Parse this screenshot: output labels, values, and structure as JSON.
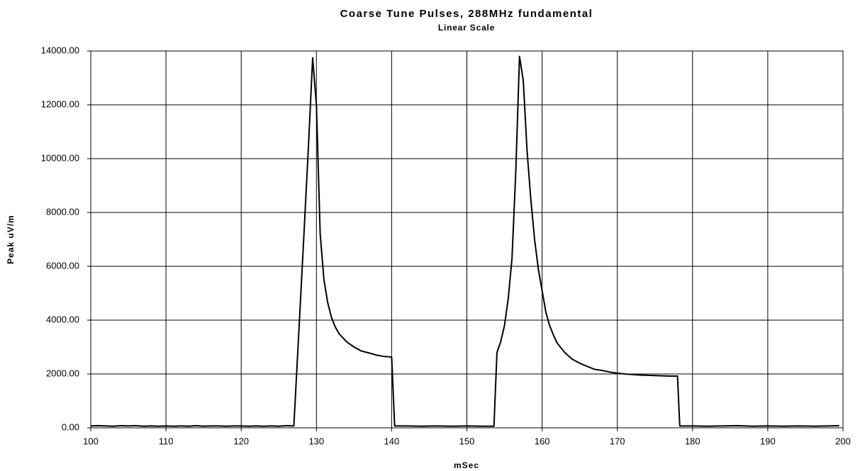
{
  "chart_data": {
    "type": "line",
    "title": "Coarse Tune Pulses,  288MHz fundamental",
    "subtitle": "Linear Scale",
    "x_label": "mSec",
    "y_label": "Peak uV/m",
    "color": "#000000",
    "grid": true,
    "xlim": [
      100,
      200
    ],
    "xticks": [
      100,
      110,
      120,
      130,
      140,
      150,
      160,
      170,
      180,
      190,
      200
    ],
    "ylim": [
      0,
      14000
    ],
    "yticks": [
      {
        "value": 0,
        "label": "0.00"
      },
      {
        "value": 2000,
        "label": "2000.00"
      },
      {
        "value": 4000,
        "label": "4000.00"
      },
      {
        "value": 6000,
        "label": "6000.00"
      },
      {
        "value": 8000,
        "label": "8000.00"
      },
      {
        "value": 10000,
        "label": "10000.00"
      },
      {
        "value": 12000,
        "label": "12000.00"
      },
      {
        "value": 14000,
        "label": "14000.00"
      }
    ],
    "x": [
      100,
      101,
      102,
      103,
      104,
      105,
      106,
      107,
      108,
      109,
      110,
      111,
      112,
      113,
      114,
      115,
      116,
      117,
      118,
      119,
      120,
      121,
      122,
      123,
      124,
      125,
      126,
      127,
      127.8,
      128.4,
      129,
      129.5,
      130,
      130.5,
      131,
      131.5,
      132,
      132.5,
      133,
      134,
      135,
      136,
      137,
      138,
      139,
      140,
      140.4,
      142,
      144,
      146,
      148,
      150,
      152,
      153.6,
      154,
      154.5,
      155,
      155.5,
      156,
      156.5,
      157,
      157.5,
      158,
      158.5,
      159,
      159.5,
      160,
      160.5,
      161,
      161.5,
      162,
      163,
      164,
      165,
      166,
      167,
      168,
      169,
      170,
      171,
      172,
      173,
      174,
      175,
      176,
      177,
      178,
      178.3,
      180,
      182,
      184,
      186,
      188,
      190,
      192,
      194,
      196,
      198,
      199.5
    ],
    "values": [
      70,
      80,
      70,
      60,
      80,
      70,
      80,
      60,
      70,
      60,
      70,
      60,
      70,
      60,
      80,
      60,
      70,
      70,
      60,
      70,
      70,
      60,
      70,
      60,
      70,
      60,
      80,
      70,
      4300,
      7500,
      10800,
      13750,
      12000,
      7200,
      5500,
      4650,
      4100,
      3750,
      3500,
      3200,
      3000,
      2850,
      2780,
      2700,
      2650,
      2630,
      70,
      70,
      60,
      70,
      60,
      70,
      60,
      60,
      2800,
      3200,
      3800,
      4800,
      6300,
      9500,
      13800,
      12900,
      10300,
      8500,
      7000,
      5900,
      5100,
      4300,
      3800,
      3450,
      3150,
      2800,
      2550,
      2400,
      2280,
      2170,
      2130,
      2070,
      2030,
      2000,
      1980,
      1960,
      1950,
      1940,
      1930,
      1920,
      1920,
      70,
      70,
      60,
      70,
      80,
      60,
      70,
      60,
      70,
      60,
      70,
      80
    ]
  }
}
